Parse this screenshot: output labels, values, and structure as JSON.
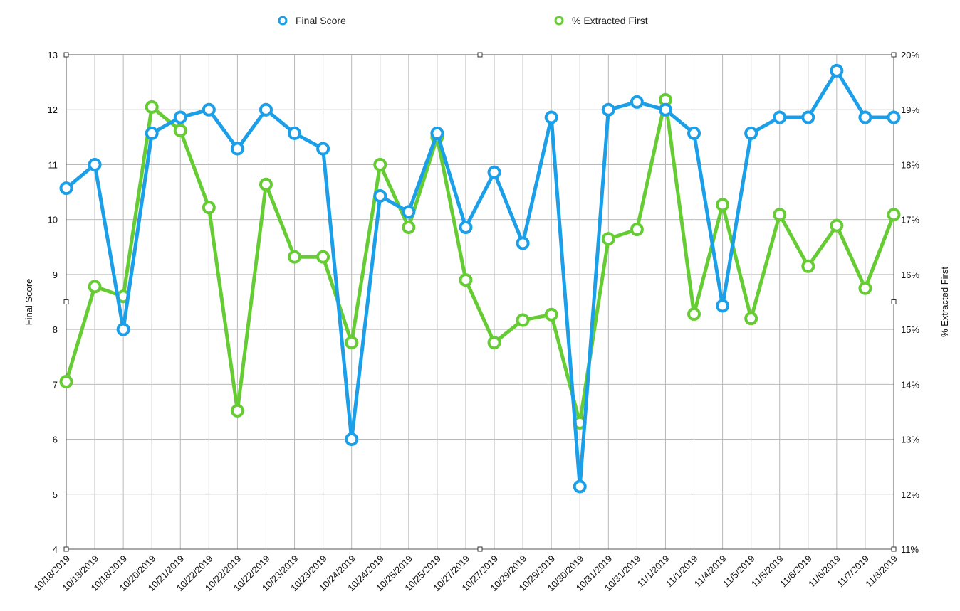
{
  "chart_data": {
    "type": "line",
    "categories": [
      "10/18/2019",
      "10/18/2019",
      "10/18/2019",
      "10/20/2019",
      "10/21/2019",
      "10/22/2019",
      "10/22/2019",
      "10/22/2019",
      "10/23/2019",
      "10/23/2019",
      "10/24/2019",
      "10/24/2019",
      "10/25/2019",
      "10/25/2019",
      "10/27/2019",
      "10/27/2019",
      "10/29/2019",
      "10/29/2019",
      "10/30/2019",
      "10/31/2019",
      "10/31/2019",
      "11/1/2019",
      "11/1/2019",
      "11/4/2019",
      "11/5/2019",
      "11/5/2019",
      "11/6/2019",
      "11/6/2019",
      "11/7/2019",
      "11/8/2019"
    ],
    "series": [
      {
        "name": "Final Score",
        "axis": "left",
        "color": "#1a9fe8",
        "values": [
          10.57,
          11.0,
          8.0,
          11.57,
          11.86,
          12.0,
          11.29,
          12.0,
          11.57,
          11.29,
          6.0,
          10.43,
          10.14,
          11.57,
          9.86,
          10.86,
          9.57,
          11.86,
          5.14,
          12.0,
          12.14,
          12.0,
          11.57,
          8.43,
          11.57,
          11.86,
          11.86,
          12.71,
          11.86,
          11.86
        ]
      },
      {
        "name": "% Extracted First",
        "axis": "right",
        "color": "#66cc33",
        "values": [
          14.05,
          15.78,
          15.6,
          19.05,
          18.62,
          17.22,
          13.52,
          17.64,
          16.32,
          16.32,
          14.76,
          18.0,
          16.86,
          18.5,
          15.9,
          14.76,
          15.17,
          15.27,
          13.3,
          16.65,
          16.82,
          19.18,
          15.28,
          17.27,
          15.2,
          17.09,
          16.15,
          16.89,
          15.75,
          17.09
        ]
      }
    ],
    "ylabel": "Final Score",
    "y2label": "% Extracted First",
    "ylim": [
      4,
      13
    ],
    "y2lim": [
      11,
      20
    ],
    "yticks": [
      "4",
      "5",
      "6",
      "7",
      "8",
      "9",
      "10",
      "11",
      "12",
      "13"
    ],
    "y2ticks": [
      "11%",
      "12%",
      "13%",
      "14%",
      "15%",
      "16%",
      "17%",
      "18%",
      "19%",
      "20%"
    ],
    "grid": true,
    "legend_position": "top-center"
  }
}
